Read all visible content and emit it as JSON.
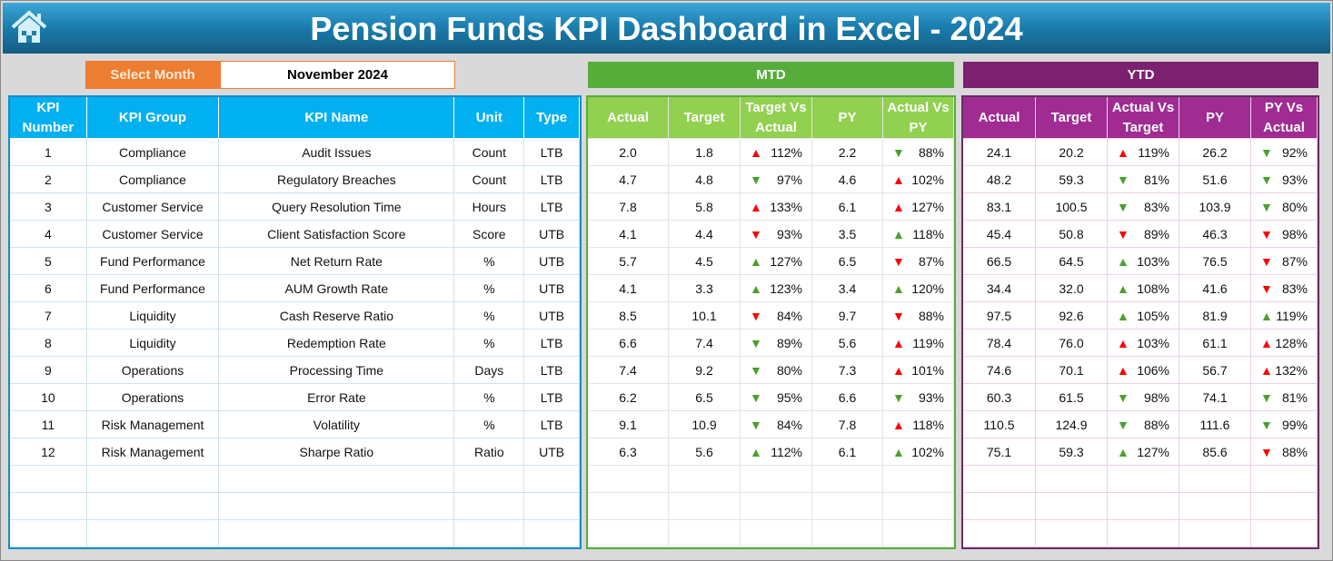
{
  "header": {
    "title": "Pension Funds KPI Dashboard in Excel - 2024",
    "icon": "home-icon"
  },
  "selector": {
    "label": "Select Month",
    "value": "November 2024"
  },
  "sections": {
    "mtd": "MTD",
    "ytd": "YTD"
  },
  "colors": {
    "up_good": "#4aa02c",
    "bad": "#ff0000"
  },
  "kpi_headers": [
    "KPI Number",
    "KPI Group",
    "KPI Name",
    "Unit",
    "Type"
  ],
  "mtd_headers": [
    "Actual",
    "Target",
    "Target Vs Actual",
    "PY",
    "Actual Vs PY"
  ],
  "ytd_headers": [
    "Actual",
    "Target",
    "Actual Vs Target",
    "PY",
    "PY Vs Actual"
  ],
  "rows": [
    {
      "num": "1",
      "group": "Compliance",
      "name": "Audit Issues",
      "unit": "Count",
      "type": "LTB",
      "mtd": [
        "2.0",
        "1.8",
        "112%",
        "2.2",
        "88%"
      ],
      "ytd": [
        "24.1",
        "20.2",
        "119%",
        "26.2",
        "92%"
      ]
    },
    {
      "num": "2",
      "group": "Compliance",
      "name": "Regulatory Breaches",
      "unit": "Count",
      "type": "LTB",
      "mtd": [
        "4.7",
        "4.8",
        "97%",
        "4.6",
        "102%"
      ],
      "ytd": [
        "48.2",
        "59.3",
        "81%",
        "51.6",
        "93%"
      ]
    },
    {
      "num": "3",
      "group": "Customer Service",
      "name": "Query Resolution Time",
      "unit": "Hours",
      "type": "LTB",
      "mtd": [
        "7.8",
        "5.8",
        "133%",
        "6.1",
        "127%"
      ],
      "ytd": [
        "83.1",
        "100.5",
        "83%",
        "103.9",
        "80%"
      ]
    },
    {
      "num": "4",
      "group": "Customer Service",
      "name": "Client Satisfaction Score",
      "unit": "Score",
      "type": "UTB",
      "mtd": [
        "4.1",
        "4.4",
        "93%",
        "3.5",
        "118%"
      ],
      "ytd": [
        "45.4",
        "50.8",
        "89%",
        "46.3",
        "98%"
      ]
    },
    {
      "num": "5",
      "group": "Fund Performance",
      "name": "Net Return Rate",
      "unit": "%",
      "type": "UTB",
      "mtd": [
        "5.7",
        "4.5",
        "127%",
        "6.5",
        "87%"
      ],
      "ytd": [
        "66.5",
        "64.5",
        "103%",
        "76.5",
        "87%"
      ]
    },
    {
      "num": "6",
      "group": "Fund Performance",
      "name": "AUM Growth Rate",
      "unit": "%",
      "type": "UTB",
      "mtd": [
        "4.1",
        "3.3",
        "123%",
        "3.4",
        "120%"
      ],
      "ytd": [
        "34.4",
        "32.0",
        "108%",
        "41.6",
        "83%"
      ]
    },
    {
      "num": "7",
      "group": "Liquidity",
      "name": "Cash Reserve Ratio",
      "unit": "%",
      "type": "UTB",
      "mtd": [
        "8.5",
        "10.1",
        "84%",
        "9.7",
        "88%"
      ],
      "ytd": [
        "97.5",
        "92.6",
        "105%",
        "81.9",
        "119%"
      ]
    },
    {
      "num": "8",
      "group": "Liquidity",
      "name": "Redemption Rate",
      "unit": "%",
      "type": "LTB",
      "mtd": [
        "6.6",
        "7.4",
        "89%",
        "5.6",
        "119%"
      ],
      "ytd": [
        "78.4",
        "76.0",
        "103%",
        "61.1",
        "128%"
      ]
    },
    {
      "num": "9",
      "group": "Operations",
      "name": "Processing Time",
      "unit": "Days",
      "type": "LTB",
      "mtd": [
        "7.4",
        "9.2",
        "80%",
        "7.3",
        "101%"
      ],
      "ytd": [
        "74.6",
        "70.1",
        "106%",
        "56.7",
        "132%"
      ]
    },
    {
      "num": "10",
      "group": "Operations",
      "name": "Error Rate",
      "unit": "%",
      "type": "LTB",
      "mtd": [
        "6.2",
        "6.5",
        "95%",
        "6.6",
        "93%"
      ],
      "ytd": [
        "60.3",
        "61.5",
        "98%",
        "74.1",
        "81%"
      ]
    },
    {
      "num": "11",
      "group": "Risk Management",
      "name": "Volatility",
      "unit": "%",
      "type": "LTB",
      "mtd": [
        "9.1",
        "10.9",
        "84%",
        "7.8",
        "118%"
      ],
      "ytd": [
        "110.5",
        "124.9",
        "88%",
        "111.6",
        "99%"
      ]
    },
    {
      "num": "12",
      "group": "Risk Management",
      "name": "Sharpe Ratio",
      "unit": "Ratio",
      "type": "UTB",
      "mtd": [
        "6.3",
        "5.6",
        "112%",
        "6.1",
        "102%"
      ],
      "ytd": [
        "75.1",
        "59.3",
        "127%",
        "85.6",
        "88%"
      ]
    }
  ]
}
